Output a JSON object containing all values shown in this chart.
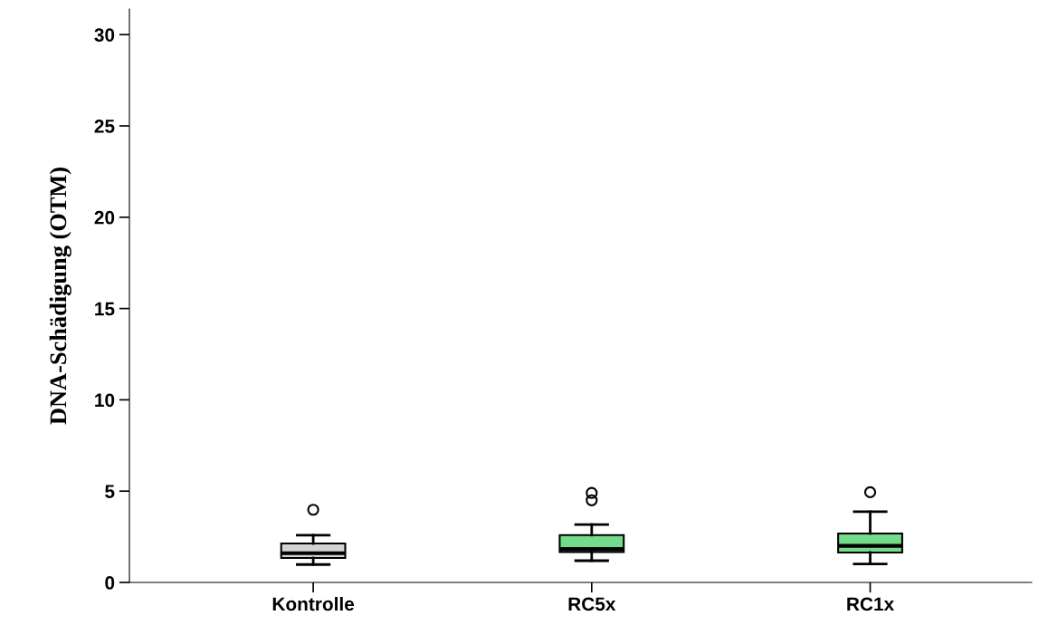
{
  "chart_data": {
    "type": "box",
    "ylabel": "DNA-Schädigung (OTM)",
    "categories": [
      "Kontrolle",
      "RC5x",
      "RC1x"
    ],
    "colors": [
      "#d3d3d3",
      "#73dc8c",
      "#73dc8c"
    ],
    "boxes": [
      {
        "low": 0.98,
        "q1": 1.34,
        "median": 1.6,
        "q3": 2.13,
        "high": 2.59,
        "outliers": [
          3.98
        ]
      },
      {
        "low": 1.19,
        "q1": 1.67,
        "median": 1.83,
        "q3": 2.59,
        "high": 3.17,
        "outliers": [
          4.5,
          4.9
        ]
      },
      {
        "low": 1.01,
        "q1": 1.64,
        "median": 2.0,
        "q3": 2.68,
        "high": 3.87,
        "outliers": [
          4.94
        ]
      }
    ],
    "ylim": [
      0,
      31.4
    ],
    "yticks": [
      0,
      5,
      10,
      15,
      20,
      25,
      30
    ],
    "grid": false
  }
}
